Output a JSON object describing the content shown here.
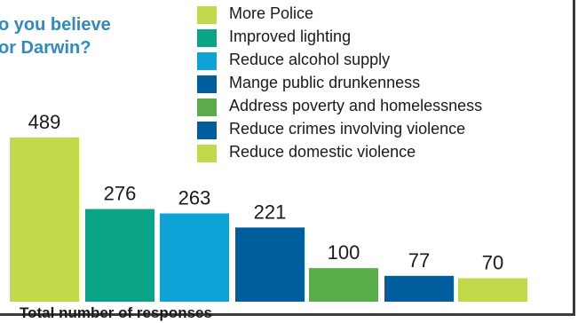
{
  "title": {
    "line1": "o you believe",
    "line2": "or Darwin?"
  },
  "colors": {
    "title": "#2f8ac4",
    "frame": "#3a3a3a"
  },
  "chart_data": {
    "type": "bar",
    "categories": [
      "More Police",
      "Improved lighting",
      "Reduce alcohol supply",
      "Mange public drunkenness",
      "Address poverty and homelessness",
      "Reduce crimes involving violence",
      "Reduce domestic violence"
    ],
    "values": [
      489,
      276,
      263,
      221,
      100,
      77,
      70
    ],
    "colors": [
      "#c2d94a",
      "#0aa586",
      "#0fa2d6",
      "#005e9f",
      "#5aac4a",
      "#005e9f",
      "#c2d94a"
    ],
    "xlabel": "Total number of responses",
    "ylabel": "",
    "ylim": [
      0,
      489
    ],
    "grid": false,
    "legend": "top-right",
    "data_labels": true
  }
}
